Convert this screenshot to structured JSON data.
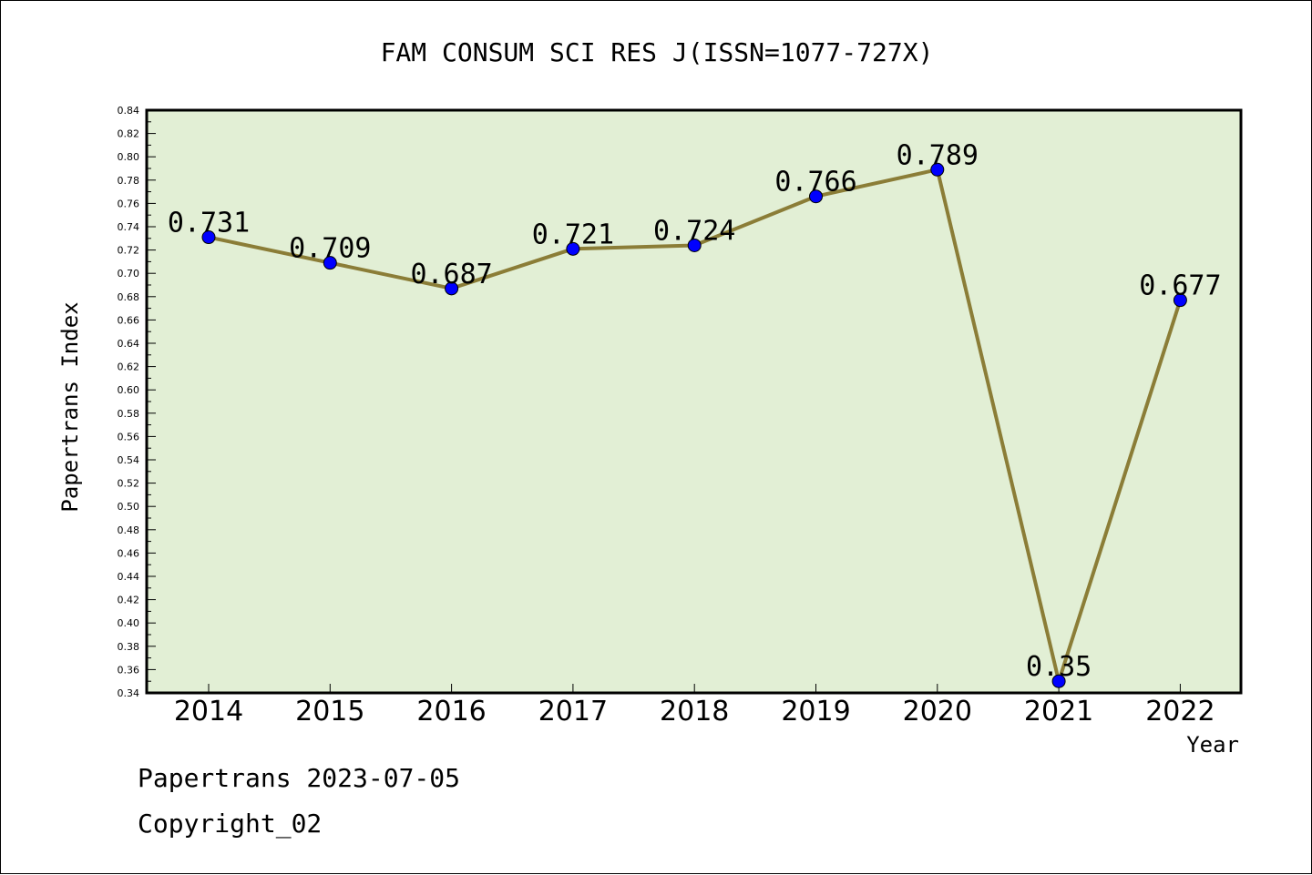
{
  "chart_data": {
    "type": "line",
    "title": "FAM CONSUM SCI RES J(ISSN=1077-727X)",
    "xlabel": "Year",
    "ylabel": "Papertrans Index",
    "categories": [
      "2014",
      "2015",
      "2016",
      "2017",
      "2018",
      "2019",
      "2020",
      "2021",
      "2022"
    ],
    "values": [
      0.731,
      0.709,
      0.687,
      0.721,
      0.724,
      0.766,
      0.789,
      0.35,
      0.677
    ],
    "labels": [
      "0.731",
      "0.709",
      "0.687",
      "0.721",
      "0.724",
      "0.766",
      "0.789",
      "0.35",
      "0.677"
    ],
    "ylim": [
      0.34,
      0.84
    ],
    "ytick_step": 0.02,
    "grid": false,
    "colors": {
      "plot_bg": "#e2efd5",
      "line": "#8b7d37",
      "marker": "#0000ff"
    }
  },
  "footer": {
    "line1": "Papertrans 2023-07-05",
    "line2": "Copyright_02"
  }
}
